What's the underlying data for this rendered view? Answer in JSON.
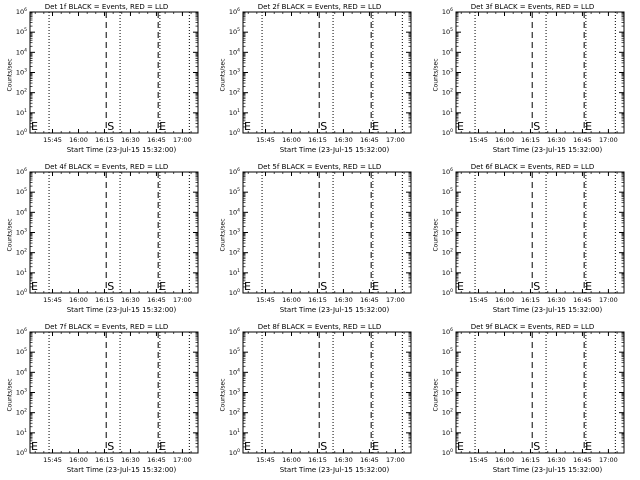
{
  "chart_data": {
    "type": "line",
    "layout": "3x3 grid of panels",
    "panels": [
      {
        "title": "Det 1f BLACK = Events, RED = LLD"
      },
      {
        "title": "Det 2f BLACK = Events, RED = LLD"
      },
      {
        "title": "Det 3f BLACK = Events, RED = LLD"
      },
      {
        "title": "Det 4f BLACK = Events, RED = LLD"
      },
      {
        "title": "Det 5f BLACK = Events, RED = LLD"
      },
      {
        "title": "Det 6f BLACK = Events, RED = LLD"
      },
      {
        "title": "Det 7f BLACK = Events, RED = LLD"
      },
      {
        "title": "Det 8f BLACK = Events, RED = LLD"
      },
      {
        "title": "Det 9f BLACK = Events, RED = LLD"
      }
    ],
    "xlabel": "Start Time (23-Jul-15 15:32:00)",
    "ylabel": "Counts/sec",
    "x_tick_labels": [
      "15:45",
      "16:00",
      "16:15",
      "16:30",
      "16:45",
      "17:00"
    ],
    "x_tick_minutes": [
      13,
      28,
      43,
      58,
      73,
      88
    ],
    "xlim_minutes": [
      0,
      97
    ],
    "yscale": "log",
    "ylim": [
      1,
      1000000
    ],
    "y_ticks": [
      {
        "value": 1,
        "label": "10",
        "exp": "0"
      },
      {
        "value": 10,
        "label": "10",
        "exp": "1"
      },
      {
        "value": 100,
        "label": "10",
        "exp": "2"
      },
      {
        "value": 1000,
        "label": "10",
        "exp": "3"
      },
      {
        "value": 10000,
        "label": "10",
        "exp": "4"
      },
      {
        "value": 100000,
        "label": "10",
        "exp": "5"
      },
      {
        "value": 1000000,
        "label": "10",
        "exp": "6"
      }
    ],
    "vertical_markers": [
      {
        "minutes": 11,
        "style": "dotted"
      },
      {
        "minutes": 44,
        "style": "dashed",
        "label": "S"
      },
      {
        "minutes": 52,
        "style": "dotted"
      },
      {
        "minutes": 74,
        "style": "dashed",
        "label": "E"
      },
      {
        "minutes": 75,
        "style": "dotted"
      },
      {
        "minutes": 92,
        "style": "dotted"
      }
    ],
    "start_marker_label": "E",
    "series": [],
    "grid": false,
    "colors": {
      "events": "#000000",
      "lld": "#ff0000"
    }
  }
}
